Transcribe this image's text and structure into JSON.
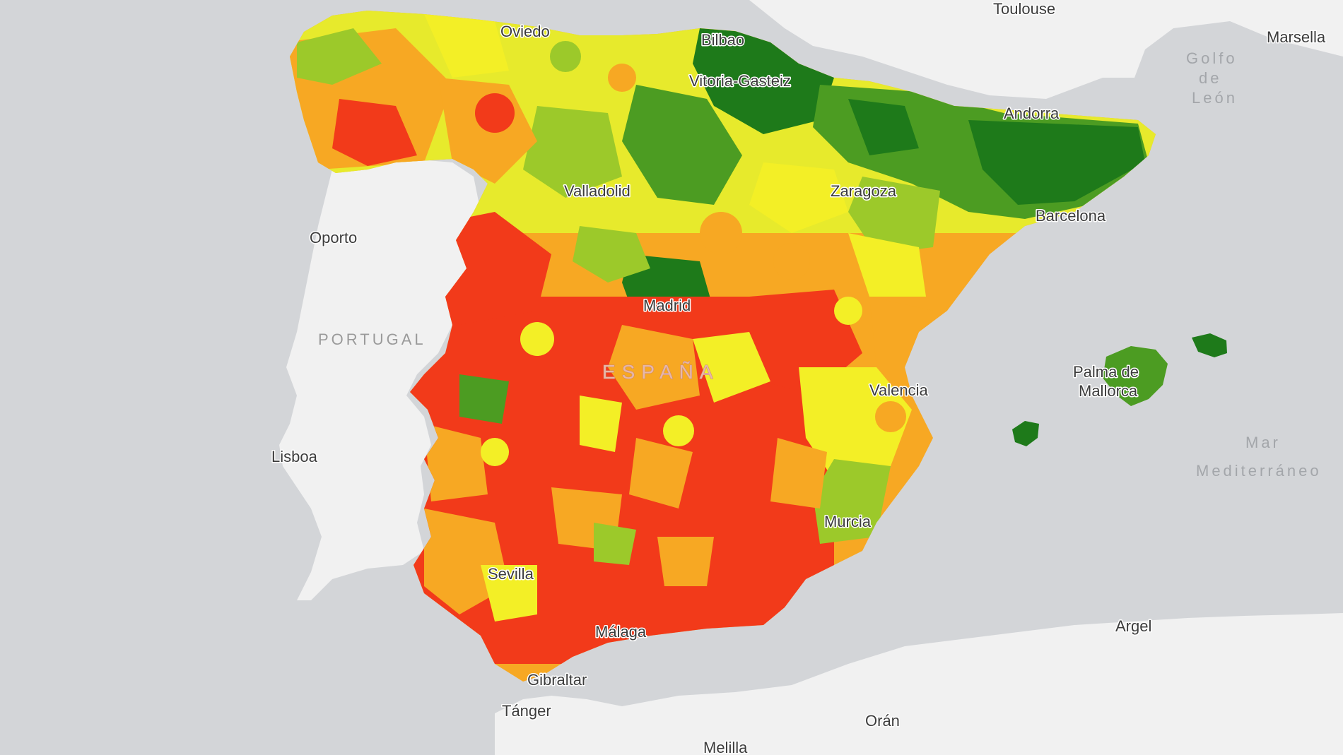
{
  "map": {
    "colors": {
      "sea": "#d3d5d8",
      "land": "#f1f1f1",
      "dark_green": "#1e7a1a",
      "green": "#4c9c22",
      "light_green": "#9cc92a",
      "yellow": "#f3ef26",
      "orange": "#f7a823",
      "red": "#f23a1a"
    },
    "labels": {
      "country_portugal": "PORTUGAL",
      "country_spain": "ESPAÑA",
      "toulouse": "Toulouse",
      "marsella": "Marsella",
      "golfo_line1": "Golfo",
      "golfo_line2": "de",
      "golfo_line3": "León",
      "oviedo": "Oviedo",
      "bilbao": "Bilbao",
      "vitoria": "Vitoria-Gasteiz",
      "andorra": "Andorra",
      "valladolid": "Valladolid",
      "zaragoza": "Zaragoza",
      "barcelona": "Barcelona",
      "oporto": "Oporto",
      "madrid": "Madrid",
      "palma_line1": "Palma de",
      "palma_line2": "Mallorca",
      "valencia": "Valencia",
      "lisboa": "Lisboa",
      "mar_line1": "Mar",
      "mar_line2": "Mediterráneo",
      "murcia": "Murcia",
      "sevilla": "Sevilla",
      "argel": "Argel",
      "malaga": "Málaga",
      "gibraltar": "Gibraltar",
      "tanger": "Tánger",
      "oran": "Orán",
      "melilla": "Melilla"
    }
  }
}
